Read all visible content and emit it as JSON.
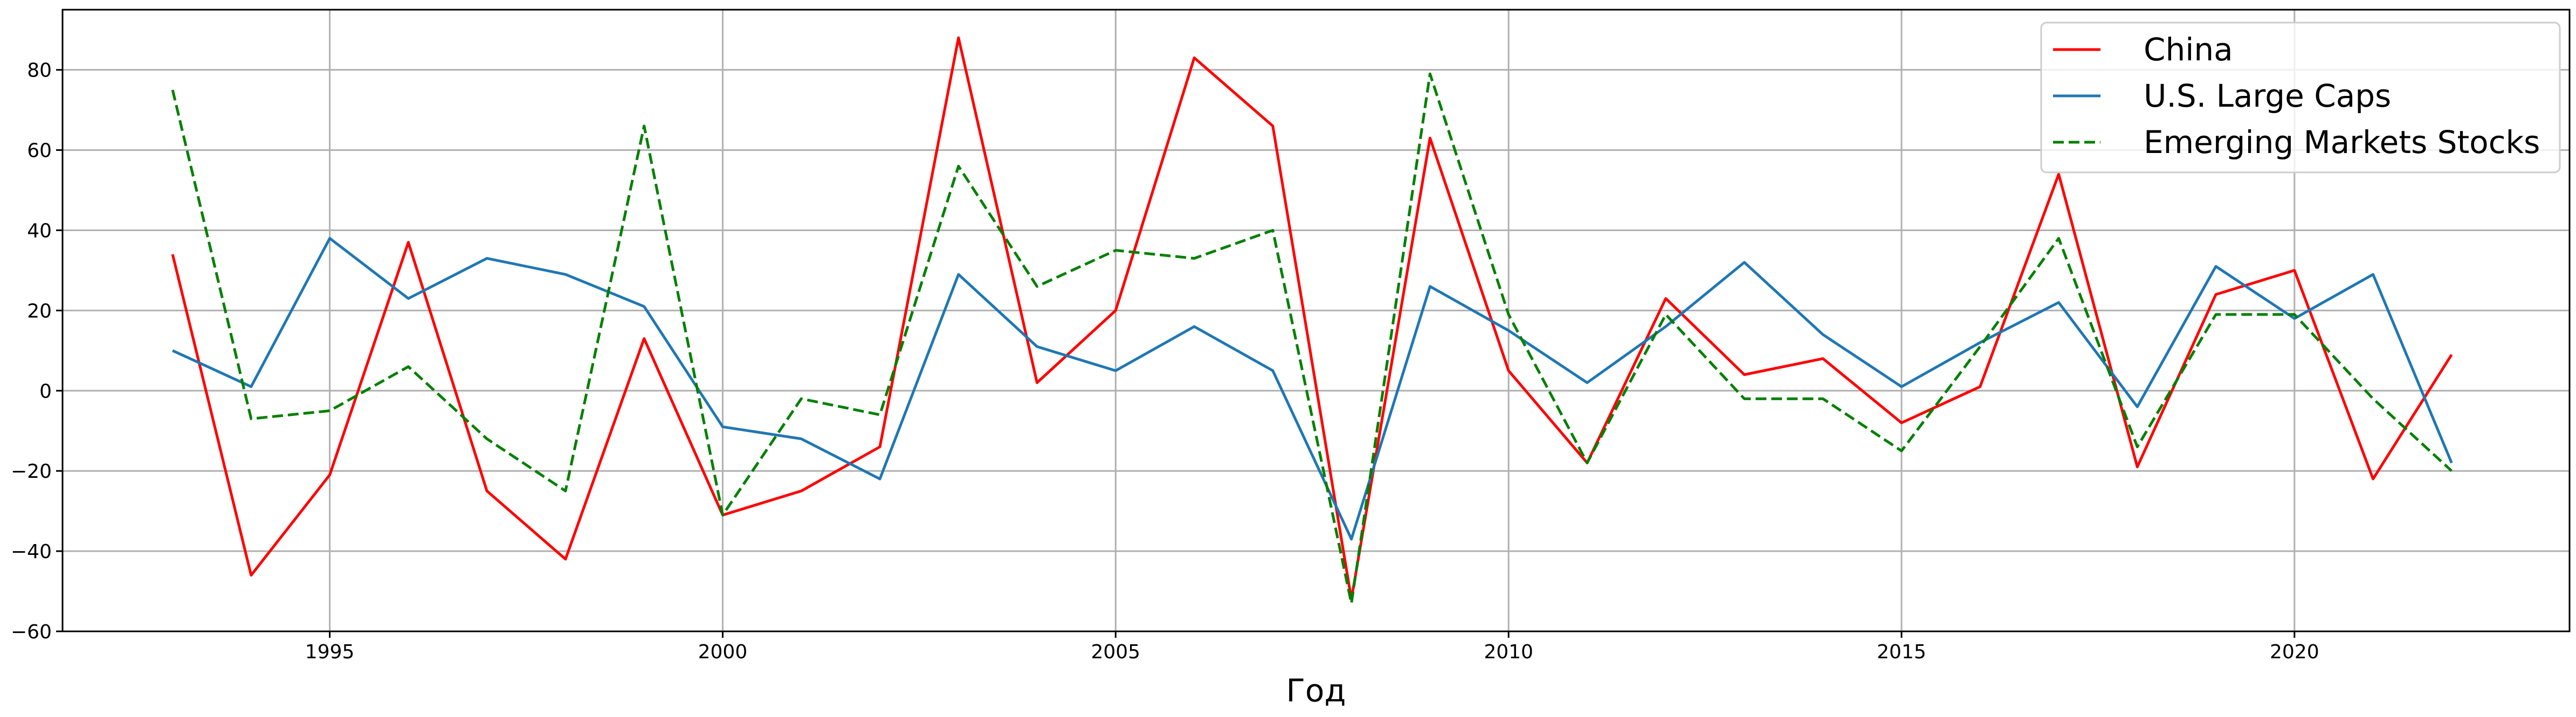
{
  "chart_data": {
    "type": "line",
    "title": "",
    "xlabel": "Год",
    "ylabel": "",
    "x": [
      1993,
      1994,
      1995,
      1996,
      1997,
      1998,
      1999,
      2000,
      2001,
      2002,
      2003,
      2004,
      2005,
      2006,
      2007,
      2008,
      2009,
      2010,
      2011,
      2012,
      2013,
      2014,
      2015,
      2016,
      2017,
      2018,
      2019,
      2020,
      2021,
      2022
    ],
    "xlim": [
      1991.6,
      2023.5
    ],
    "ylim": [
      -60,
      95
    ],
    "xticks": [
      1995,
      2000,
      2005,
      2010,
      2015,
      2020
    ],
    "yticks": [
      -60,
      -40,
      -20,
      0,
      20,
      40,
      60,
      80
    ],
    "grid": true,
    "legend_position": "top-right",
    "series": [
      {
        "name": "China",
        "color": "#ff0000",
        "linestyle": "solid",
        "values": [
          34,
          -46,
          -21,
          37,
          -25,
          -42,
          13,
          -31,
          -25,
          -14,
          88,
          2,
          20,
          83,
          66,
          -52,
          63,
          5,
          -18,
          23,
          4,
          8,
          -8,
          1,
          54,
          -19,
          24,
          30,
          -22,
          9
        ]
      },
      {
        "name": "U.S. Large Caps",
        "color": "#1f77b4",
        "linestyle": "solid",
        "values": [
          10,
          1,
          38,
          23,
          33,
          29,
          21,
          -9,
          -12,
          -22,
          29,
          11,
          5,
          16,
          5,
          -37,
          26,
          15,
          2,
          16,
          32,
          14,
          1,
          12,
          22,
          -4,
          31,
          18,
          29,
          -18
        ]
      },
      {
        "name": "Emerging Markets Stocks",
        "color": "#008000",
        "linestyle": "dashed",
        "values": [
          75,
          -7,
          -5,
          6,
          -12,
          -25,
          66,
          -31,
          -2,
          -6,
          56,
          26,
          35,
          33,
          40,
          -53,
          79,
          19,
          -18,
          19,
          -2,
          -2,
          -15,
          11,
          38,
          -14,
          19,
          19,
          -2,
          -20
        ]
      }
    ]
  }
}
